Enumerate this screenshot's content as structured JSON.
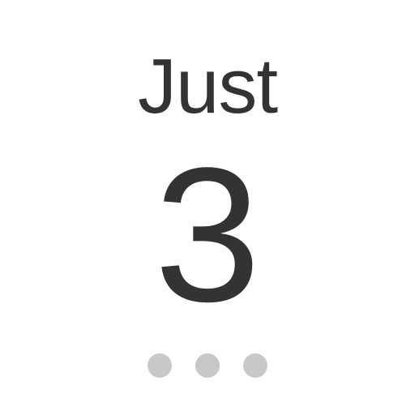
{
  "headline": "Just",
  "number": "3",
  "indicator": {
    "count": 3,
    "dot_color": "#c8c8c8"
  },
  "colors": {
    "text": "#333333",
    "background": "#ffffff"
  }
}
